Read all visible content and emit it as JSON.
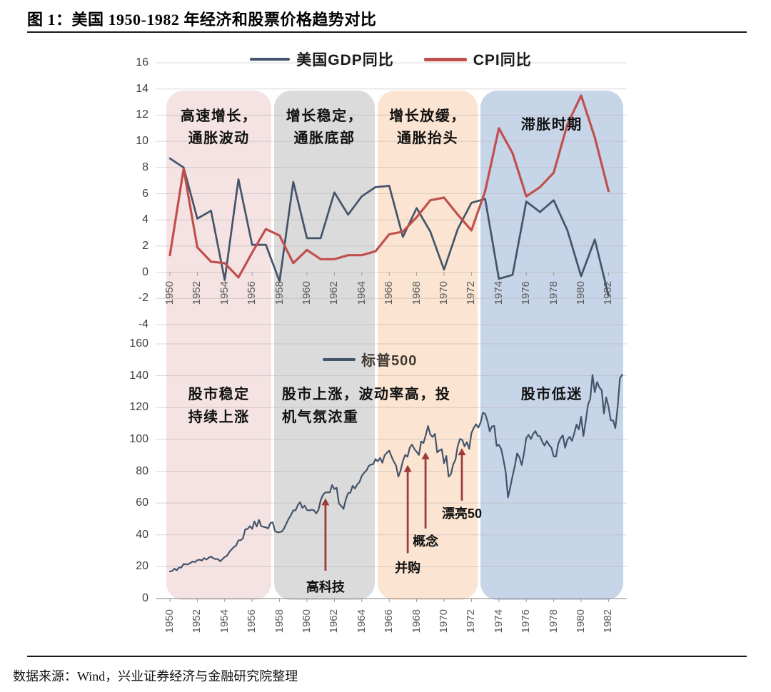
{
  "figure_title": "图 1：美国 1950-1982 年经济和股票价格趋势对比",
  "source_note": "数据来源：Wind，兴业证券经济与金融研究院整理",
  "colors": {
    "gdp_line": "#44546A",
    "cpi_line": "#C0504D",
    "sp500_line": "#44546A",
    "arrow": "#9E3B38",
    "gridline": "#b9b2b2",
    "axis_line": "#9a9a9a",
    "tick_text": "#595959"
  },
  "periods": [
    {
      "range": [
        1949.75,
        1957.4
      ],
      "color": "#F5E3E3",
      "top_label": [
        "高速增长，",
        "通胀波动"
      ],
      "bottom_label": [
        "股市稳定",
        "持续上涨"
      ],
      "bottom_align": "center"
    },
    {
      "range": [
        1957.6,
        1964.95
      ],
      "color": "#DBDBDB",
      "top_label": [
        "增长稳定，",
        "通胀底部"
      ],
      "bottom_label": [
        "股市上涨，波动率高，投",
        "机气氛浓重"
      ],
      "bottom_align": "left"
    },
    {
      "range": [
        1965.15,
        1972.45
      ],
      "color": "#FBE5D2",
      "top_label": [
        "增长放缓，",
        "通胀抬头"
      ],
      "bottom_label": [],
      "bottom_align": "center"
    },
    {
      "range": [
        1972.65,
        1983.05
      ],
      "color": "#C7D5E8",
      "top_label": [
        "滞胀时期"
      ],
      "bottom_label": [
        "股市低迷"
      ],
      "bottom_align": "center"
    }
  ],
  "chart_data": [
    {
      "type": "line",
      "title": "",
      "legend_position": "top",
      "ylim": [
        -4,
        16
      ],
      "ytick_step": 2,
      "xlim": [
        1950,
        1983
      ],
      "xticks_start": 1950,
      "xticks_end": 1982,
      "xticks_step": 2,
      "grid": true,
      "x_start": 1950,
      "x_step": 1,
      "series": [
        {
          "name": "美国GDP同比",
          "color": "#44546A",
          "values": [
            8.7,
            8.0,
            4.1,
            4.7,
            -0.6,
            7.1,
            2.1,
            2.1,
            -0.7,
            6.9,
            2.6,
            2.6,
            6.1,
            4.4,
            5.8,
            6.5,
            6.6,
            2.7,
            4.9,
            3.1,
            0.2,
            3.3,
            5.3,
            5.6,
            -0.5,
            -0.2,
            5.4,
            4.6,
            5.5,
            3.2,
            -0.3,
            2.5,
            -1.8
          ]
        },
        {
          "name": "CPI同比",
          "color": "#C0504D",
          "values": [
            1.3,
            7.9,
            1.9,
            0.8,
            0.7,
            -0.4,
            1.5,
            3.3,
            2.8,
            0.7,
            1.7,
            1.0,
            1.0,
            1.3,
            1.3,
            1.6,
            2.9,
            3.1,
            4.2,
            5.5,
            5.7,
            4.4,
            3.2,
            6.2,
            11.0,
            9.1,
            5.8,
            6.5,
            7.6,
            11.3,
            13.5,
            10.3,
            6.2
          ]
        }
      ]
    },
    {
      "type": "line",
      "title": "",
      "legend_position": "inside-top",
      "ylim": [
        0,
        160
      ],
      "ytick_step": 20,
      "xlim": [
        1950,
        1983
      ],
      "xticks_start": 1950,
      "xticks_end": 1982,
      "xticks_step": 2,
      "grid": true,
      "x_start": 1950,
      "x_step": 0.166667,
      "series": [
        {
          "name": "标普500",
          "color": "#44546A",
          "values": [
            17.0,
            17.3,
            18.8,
            17.8,
            19.5,
            19.5,
            21.7,
            21.5,
            21.5,
            22.4,
            23.3,
            22.9,
            24.1,
            24.4,
            23.9,
            25.4,
            24.5,
            25.7,
            26.4,
            25.3,
            24.8,
            24.8,
            23.4,
            24.8,
            26.1,
            26.9,
            29.2,
            30.9,
            32.3,
            33.4,
            36.6,
            36.6,
            37.9,
            43.5,
            43.7,
            45.5,
            43.8,
            48.5,
            45.2,
            49.4,
            45.4,
            45.1,
            44.7,
            44.0,
            47.4,
            47.9,
            42.4,
            41.7,
            41.7,
            42.1,
            44.1,
            47.2,
            50.1,
            52.5,
            55.4,
            55.4,
            58.7,
            60.5,
            56.9,
            58.3,
            55.6,
            55.3,
            55.8,
            55.5,
            53.5,
            55.5,
            61.8,
            65.1,
            66.6,
            66.8,
            66.7,
            71.3,
            68.8,
            69.6,
            59.6,
            58.2,
            56.3,
            62.3,
            66.2,
            66.6,
            70.8,
            69.1,
            71.7,
            73.2,
            77.0,
            79.0,
            80.4,
            83.2,
            84.2,
            84.4,
            87.6,
            86.2,
            88.4,
            85.3,
            90.0,
            91.6,
            92.9,
            89.2,
            86.1,
            83.6,
            76.6,
            80.5,
            86.6,
            90.2,
            89.1,
            94.8,
            96.7,
            94.0,
            92.2,
            90.2,
            98.7,
            97.7,
            102.7,
            108.4,
            103.0,
            101.5,
            103.5,
            91.8,
            93.1,
            93.8,
            85.0,
            89.6,
            76.6,
            78.1,
            84.2,
            87.2,
            95.9,
            100.3,
            99.6,
            95.6,
            98.3,
            94.0,
            104.0,
            107.2,
            109.5,
            107.4,
            110.6,
            116.7,
            116.0,
            111.5,
            105.0,
            108.2,
            108.4,
            96.0,
            96.6,
            94.0,
            87.3,
            79.3,
            63.5,
            70.0,
            77.0,
            83.4,
            91.2,
            88.8,
            83.9,
            91.2,
            100.9,
            102.8,
            100.2,
            103.4,
            105.2,
            102.1,
            102.0,
            98.4,
            96.1,
            98.9,
            96.5,
            94.8,
            89.3,
            89.2,
            97.2,
            100.7,
            102.5,
            94.7,
            99.9,
            101.6,
            99.1,
            103.8,
            109.3,
            106.2,
            114.2,
            102.1,
            111.2,
            121.7,
            125.5,
            140.5,
            129.6,
            136.0,
            132.6,
            130.9,
            116.2,
            126.4,
            120.4,
            112.0,
            111.9,
            107.1,
            120.4,
            138.5,
            140.6
          ]
        }
      ],
      "annotations": [
        {
          "label": "高科技",
          "year": 1961.35,
          "arrow_tip_value": 63.0,
          "arrow_tail_value": 17.5,
          "label_value": 8.5
        },
        {
          "label": "并购",
          "year": 1967.35,
          "arrow_tip_value": 84.0,
          "arrow_tail_value": 28.5,
          "label_value": 20.5
        },
        {
          "label": "概念",
          "year": 1968.65,
          "arrow_tip_value": 92.0,
          "arrow_tail_value": 44.0,
          "label_value": 37.0
        },
        {
          "label": "漂亮50",
          "year": 1971.3,
          "arrow_tip_value": 94.5,
          "arrow_tail_value": 61.5,
          "label_value": 54.5
        }
      ]
    }
  ]
}
